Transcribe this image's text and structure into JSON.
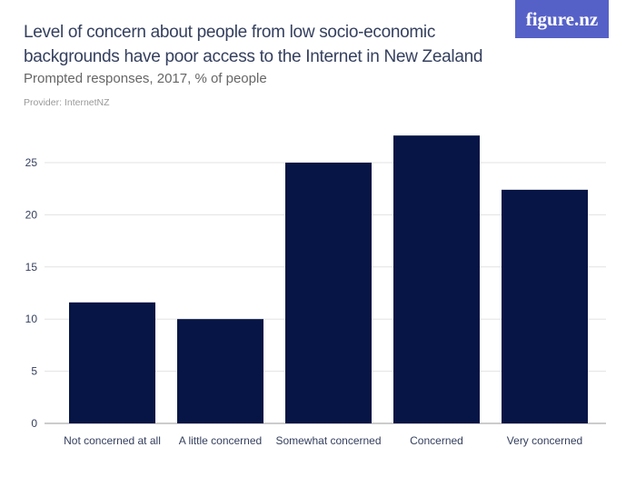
{
  "header": {
    "title": "Level of concern about people from low socio-economic backgrounds have poor access to the Internet in New Zealand",
    "subtitle": "Prompted responses, 2017, % of people",
    "provider": "Provider: InternetNZ",
    "logo": "figure.nz"
  },
  "chart_data": {
    "type": "bar",
    "title": "Level of concern about people from low socio-economic backgrounds have poor access to the Internet in New Zealand",
    "subtitle": "Prompted responses, 2017, % of people",
    "categories": [
      "Not concerned at all",
      "A little concerned",
      "Somewhat concerned",
      "Concerned",
      "Very concerned"
    ],
    "values": [
      11.6,
      10.0,
      25.0,
      27.6,
      22.4
    ],
    "yticks": [
      0,
      5,
      10,
      15,
      20,
      25
    ],
    "ylim": [
      0,
      29
    ],
    "grid": true,
    "bar_color": "#061545",
    "grid_color": "#e3e3e3"
  }
}
